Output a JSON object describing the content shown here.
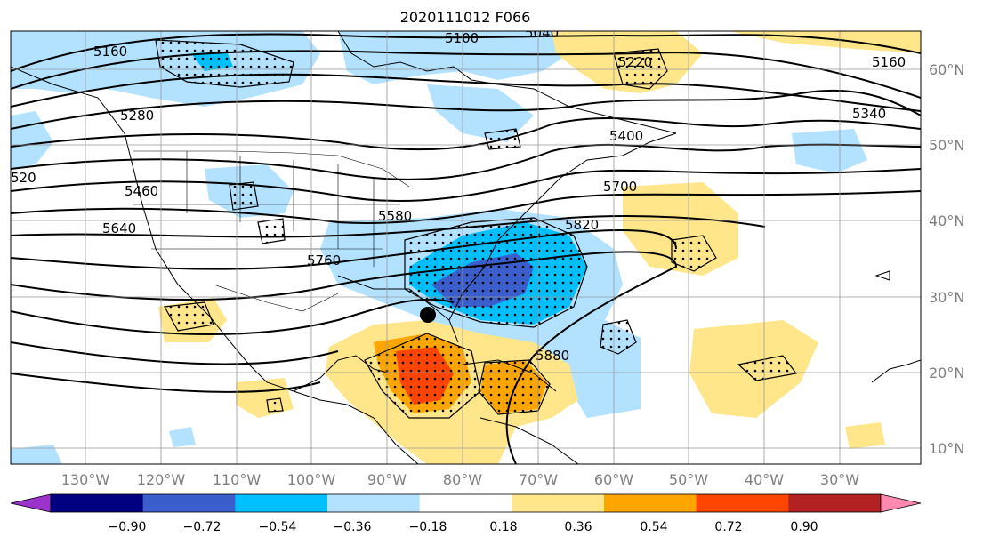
{
  "title": "2020111012 F066",
  "lon_labels": [
    "130°W",
    "120°W",
    "110°W",
    "100°W",
    "90°W",
    "80°W",
    "70°W",
    "60°W",
    "50°W",
    "40°W",
    "30°W"
  ],
  "lat_labels": [
    "60°N",
    "50°N",
    "40°N",
    "30°N",
    "20°N",
    "10°N"
  ],
  "colorbar": {
    "colors": [
      "#9933cc",
      "#000080",
      "#3a5fcd",
      "#00bfff",
      "#b2e2ff",
      "#ffffff",
      "#ffe68a",
      "#ffa500",
      "#ff4500",
      "#b22222",
      "#ff88b0"
    ],
    "labels": [
      "−0.90",
      "−0.72",
      "−0.54",
      "−0.36",
      "−0.18",
      "0.18",
      "0.36",
      "0.54",
      "0.72",
      "0.90"
    ]
  },
  "contour_labels": [
    {
      "text": "5160",
      "place": "nw"
    },
    {
      "text": "5100",
      "place": "n"
    },
    {
      "text": "5040",
      "place": "n2"
    },
    {
      "text": "5220",
      "place": "ne1"
    },
    {
      "text": "5160",
      "place": "ne2"
    },
    {
      "text": "5280",
      "place": "w1"
    },
    {
      "text": "5340",
      "place": "e1"
    },
    {
      "text": "5400",
      "place": "c1"
    },
    {
      "text": "520",
      "place": "w0"
    },
    {
      "text": "5460",
      "place": "w2"
    },
    {
      "text": "5700",
      "place": "c2"
    },
    {
      "text": "5580",
      "place": "c3"
    },
    {
      "text": "5820",
      "place": "c4"
    },
    {
      "text": "5640",
      "place": "w3"
    },
    {
      "text": "5760",
      "place": "c5"
    },
    {
      "text": "5880",
      "place": "c6"
    }
  ],
  "marker": {
    "name": "storm-center-marker"
  }
}
